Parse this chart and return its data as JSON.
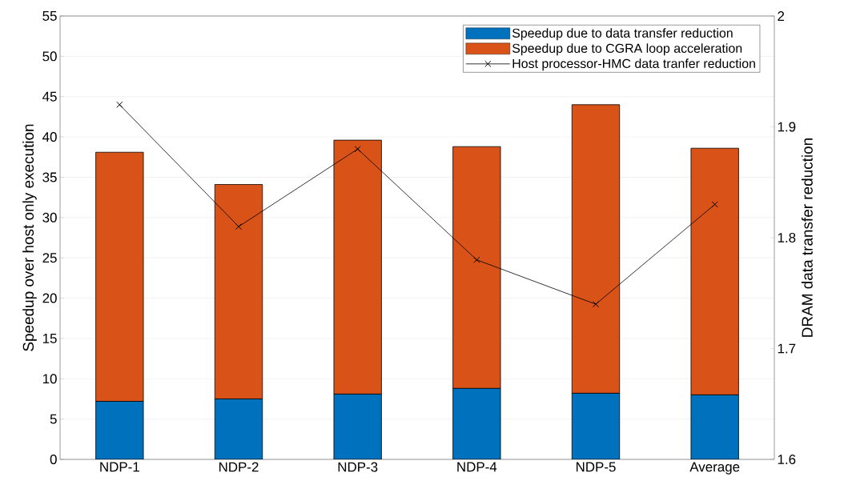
{
  "chart_data": {
    "type": "bar",
    "stacked": true,
    "categories": [
      "NDP-1",
      "NDP-2",
      "NDP-3",
      "NDP-4",
      "NDP-5",
      "Average"
    ],
    "series": [
      {
        "name": "Speedup due to data transfer reduction",
        "color": "#0072bd",
        "values": [
          7.2,
          7.5,
          8.1,
          8.8,
          8.2,
          8.0
        ]
      },
      {
        "name": "Speedup due to CGRA loop acceleration",
        "color": "#d95319",
        "values": [
          30.9,
          26.6,
          31.5,
          30.0,
          35.8,
          30.6
        ]
      },
      {
        "name": "Host processor-HMC data tranfer reduction",
        "type": "line",
        "axis": "y2",
        "color": "#000000",
        "marker": "cross",
        "line_style": "solid",
        "values": [
          1.92,
          1.81,
          1.88,
          1.78,
          1.74,
          1.83
        ]
      }
    ],
    "ylabel": "Speedup over host only execution",
    "y2label": "DRAM data transfer reduction",
    "ylim": [
      0,
      55
    ],
    "yticks": [
      0,
      5,
      10,
      15,
      20,
      25,
      30,
      35,
      40,
      45,
      50,
      55
    ],
    "y2lim": [
      1.6,
      2
    ],
    "y2ticks": [
      1.6,
      1.7,
      1.8,
      1.9,
      2
    ],
    "grid": "y",
    "legend": "top right"
  }
}
